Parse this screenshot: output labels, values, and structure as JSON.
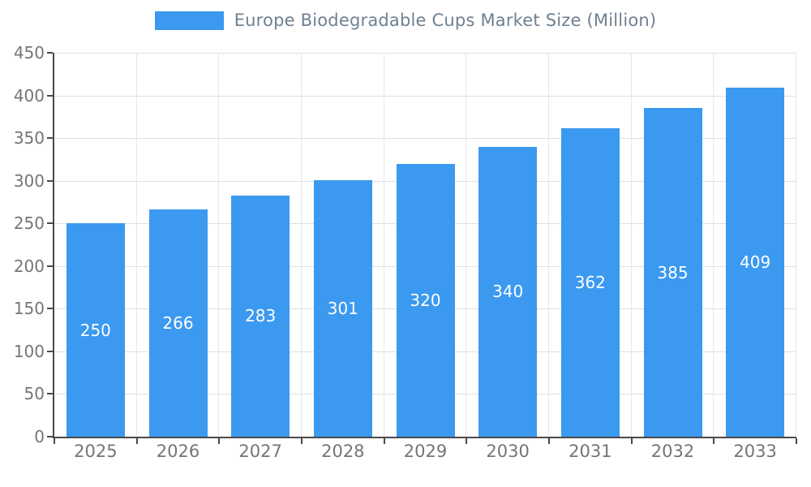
{
  "chart_data": {
    "type": "bar",
    "title": "Europe Biodegradable Cups Market Size (Million)",
    "categories": [
      "2025",
      "2026",
      "2027",
      "2028",
      "2029",
      "2030",
      "2031",
      "2032",
      "2033"
    ],
    "values": [
      250,
      266,
      283,
      301,
      320,
      340,
      362,
      385,
      409
    ],
    "xlabel": "",
    "ylabel": "",
    "ylim": [
      0,
      450
    ],
    "yticks": [
      0,
      50,
      100,
      150,
      200,
      250,
      300,
      350,
      400,
      450
    ],
    "grid": true,
    "legend_position": "top-center",
    "bar_color": "#3b99f0",
    "bar_label_color": "#ffffff",
    "axis_text_color": "#757575",
    "title_color": "#708090"
  }
}
